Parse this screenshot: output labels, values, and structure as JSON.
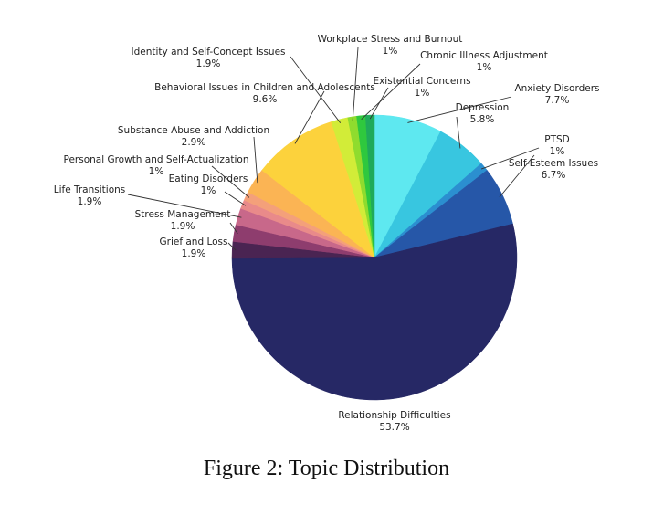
{
  "figure_caption": "Figure 2: Topic Distribution",
  "chart_data": {
    "type": "pie",
    "title": "",
    "start": "12 o'clock",
    "direction": "clockwise",
    "slices": [
      {
        "label": "Anxiety Disorders",
        "value": 7.7,
        "value_label": "7.7%",
        "color": "#5ee8f0"
      },
      {
        "label": "Depression",
        "value": 5.8,
        "value_label": "5.8%",
        "color": "#38c6e0"
      },
      {
        "label": "PTSD",
        "value": 1,
        "value_label": "1%",
        "color": "#2b8fd0"
      },
      {
        "label": "Self-Esteem Issues",
        "value": 6.7,
        "value_label": "6.7%",
        "color": "#2657a8"
      },
      {
        "label": "Relationship Difficulties",
        "value": 53.7,
        "value_label": "53.7%",
        "color": "#262865"
      },
      {
        "label": "Grief and Loss",
        "value": 1.9,
        "value_label": "1.9%",
        "color": "#4a2452"
      },
      {
        "label": "Stress Management",
        "value": 1.9,
        "value_label": "1.9%",
        "color": "#8e3d6e"
      },
      {
        "label": "Life Transitions",
        "value": 1.9,
        "value_label": "1.9%",
        "color": "#c8688a"
      },
      {
        "label": "Eating Disorders",
        "value": 1,
        "value_label": "1%",
        "color": "#e98a8a"
      },
      {
        "label": "Personal Growth and Self-Actualization",
        "value": 1,
        "value_label": "1%",
        "color": "#f4a07a"
      },
      {
        "label": "Substance Abuse and Addiction",
        "value": 2.9,
        "value_label": "2.9%",
        "color": "#fbb454"
      },
      {
        "label": "Behavioral Issues in Children and Adolescents",
        "value": 9.6,
        "value_label": "9.6%",
        "color": "#fcd23c"
      },
      {
        "label": "Identity and Self-Concept Issues",
        "value": 1.9,
        "value_label": "1.9%",
        "color": "#d2ec38"
      },
      {
        "label": "Workplace Stress and Burnout",
        "value": 1,
        "value_label": "1%",
        "color": "#8fdc2e"
      },
      {
        "label": "Chronic Illness Adjustment",
        "value": 1,
        "value_label": "1%",
        "color": "#2fc83e"
      },
      {
        "label": "Existential Concerns",
        "value": 1,
        "value_label": "1%",
        "color": "#1faa5a"
      }
    ]
  }
}
